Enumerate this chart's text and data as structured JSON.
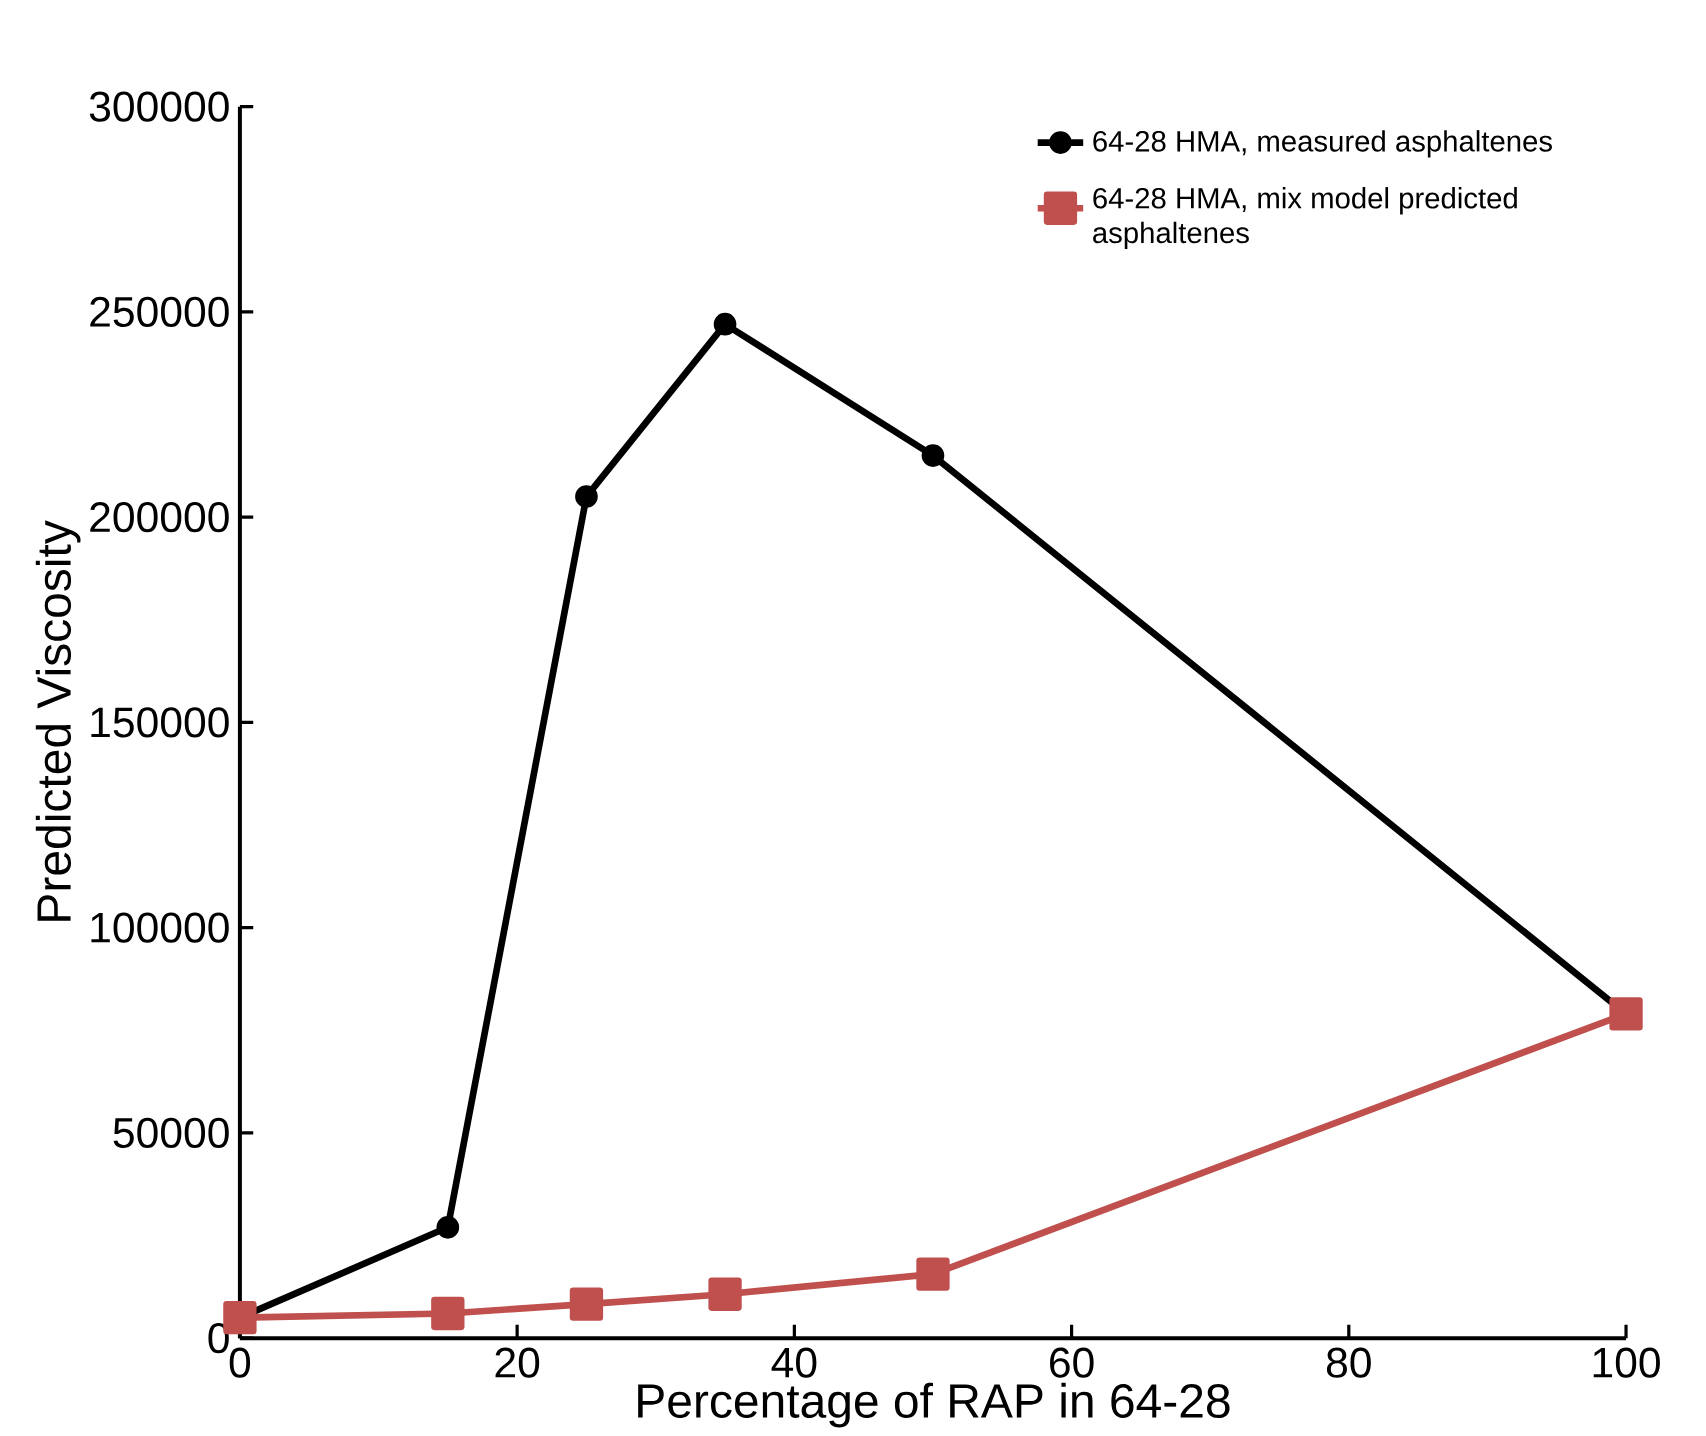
{
  "chart_data": {
    "type": "line",
    "xlabel": "Percentage of RAP in 64-28",
    "ylabel": "Predicted Viscosity",
    "x": [
      0,
      15,
      25,
      35,
      50,
      100
    ],
    "series": [
      {
        "name": "64-28 HMA, measured asphaltenes",
        "color": "#000000",
        "marker": "circle",
        "values": [
          5000,
          27000,
          205000,
          247000,
          215000,
          79000
        ]
      },
      {
        "name": "64-28 HMA, mix model predicted asphaltenes",
        "color": "#c0504d",
        "marker": "square",
        "values": [
          5000,
          6000,
          8300,
          10700,
          15600,
          79000
        ]
      }
    ],
    "xlim": [
      0,
      100
    ],
    "xticks": [
      0,
      20,
      40,
      60,
      80,
      100
    ],
    "ylim": [
      0,
      300000
    ],
    "yticks": [
      0,
      50000,
      100000,
      150000,
      200000,
      250000,
      300000
    ],
    "grid": false,
    "legend": "top right",
    "line_style": "solid"
  }
}
